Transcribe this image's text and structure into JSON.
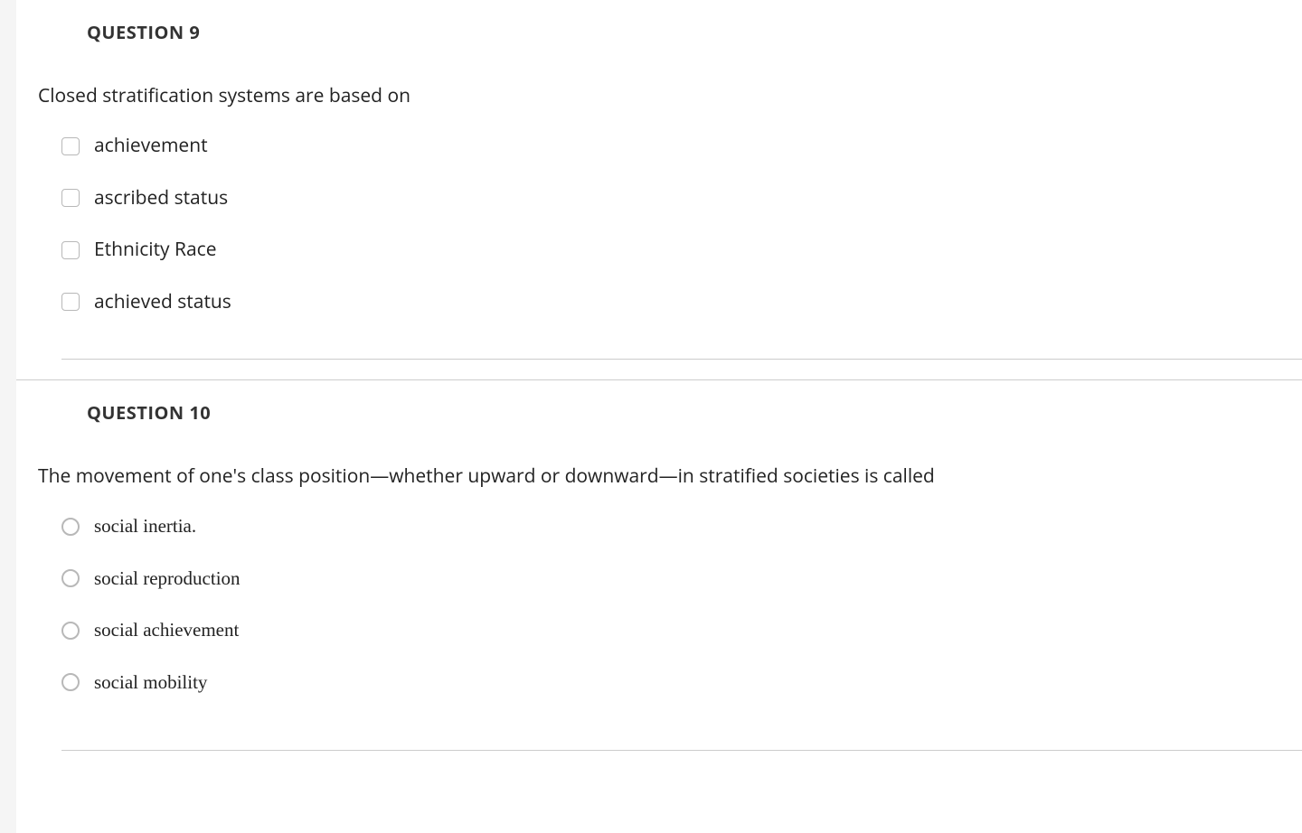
{
  "questions": [
    {
      "title": "QUESTION 9",
      "prompt": "Closed stratification systems are based on",
      "options": [
        {
          "label": "achievement"
        },
        {
          "label": "ascribed status"
        },
        {
          "label": "Ethnicity Race"
        },
        {
          "label": "achieved status"
        }
      ]
    },
    {
      "title": "QUESTION 10",
      "prompt": "The movement of one's class position—whether upward or downward—in stratified societies is called",
      "options": [
        {
          "label": "social inertia."
        },
        {
          "label": "social reproduction"
        },
        {
          "label": "social achievement"
        },
        {
          "label": "social mobility"
        }
      ]
    }
  ],
  "style": {
    "background_color": "#f5f5f5",
    "card_background": "#ffffff",
    "text_color": "#222222",
    "title_color": "#333333",
    "divider_color": "#cccccc",
    "checkbox_border": "#b8b8b8",
    "prompt_fontsize": 21,
    "title_fontsize": 20,
    "option_fontsize": 21,
    "q10_option_font": "serif"
  }
}
